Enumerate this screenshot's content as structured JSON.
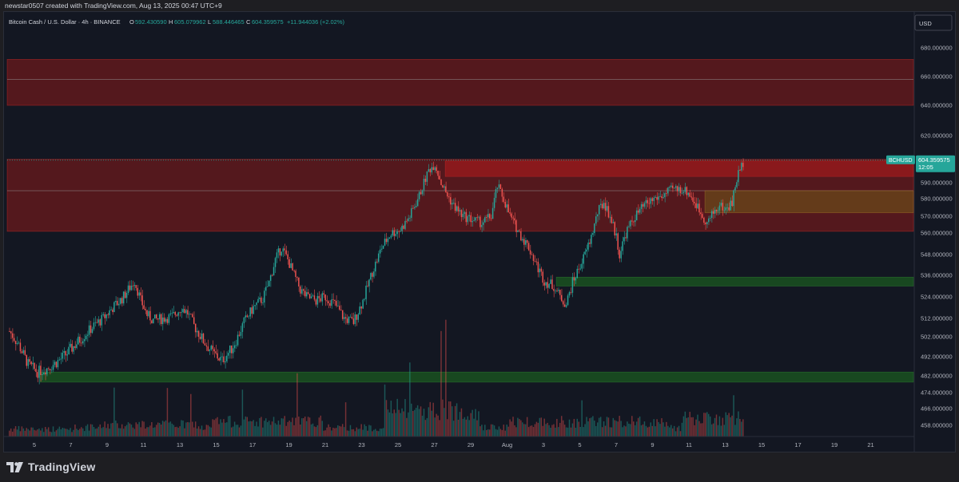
{
  "header": {
    "credit": "newstar0507 created with TradingView.com, Aug 13, 2025 00:47 UTC+9"
  },
  "footer": {
    "brand": "TradingView"
  },
  "colors": {
    "background": "#131722",
    "bull": "#26a69a",
    "bear": "#ef5350",
    "resistance_zone": "#8b1a1a",
    "support_zone": "#1b5e20",
    "orange_zone": "#6b4a1a",
    "price_tag": "#26a69a"
  },
  "chart_data": {
    "type": "candlestick",
    "legend": {
      "symbol": "Bitcoin Cash / U.S. Dollar · 4h · BINANCE",
      "o_label": "O",
      "o_value": "592.430590",
      "h_label": "H",
      "h_value": "605.079962",
      "l_label": "L",
      "l_value": "588.446465",
      "c_label": "C",
      "c_value": "604.359575",
      "change": "+11.944036 (+2.02%)"
    },
    "currency": "USD",
    "y_ticks": [
      "680.000000",
      "660.000000",
      "640.000000",
      "620.000000",
      "590.000000",
      "580.000000",
      "570.000000",
      "560.000000",
      "548.000000",
      "536.000000",
      "524.000000",
      "512.000000",
      "502.000000",
      "492.000000",
      "482.000000",
      "474.000000",
      "466.000000",
      "458.000000"
    ],
    "x_ticks": [
      "5",
      "7",
      "9",
      "11",
      "13",
      "15",
      "17",
      "19",
      "21",
      "23",
      "25",
      "27",
      "29",
      "Aug",
      "3",
      "5",
      "7",
      "9",
      "11",
      "13",
      "15",
      "17",
      "19",
      "21"
    ],
    "price_tag": {
      "symbol": "BCHUSD",
      "value": "604.359575",
      "countdown": "12:05"
    },
    "zones": [
      {
        "kind": "resistance",
        "from": 640,
        "to": 672,
        "midline": 658
      },
      {
        "kind": "resistance",
        "from": 561,
        "to": 605,
        "midline": 585
      },
      {
        "kind": "resistance-highlight",
        "from": 594,
        "to": 604
      },
      {
        "kind": "orange",
        "from": 572,
        "to": 585
      },
      {
        "kind": "support",
        "from": 530,
        "to": 535
      },
      {
        "kind": "support",
        "from": 479,
        "to": 484
      }
    ],
    "trend_path": [
      [
        0,
        505
      ],
      [
        6,
        498
      ],
      [
        12,
        488
      ],
      [
        18,
        484
      ],
      [
        24,
        486
      ],
      [
        30,
        489
      ],
      [
        36,
        493
      ],
      [
        42,
        498
      ],
      [
        48,
        503
      ],
      [
        54,
        508
      ],
      [
        60,
        512
      ],
      [
        66,
        518
      ],
      [
        72,
        523
      ],
      [
        76,
        528
      ],
      [
        80,
        533
      ],
      [
        84,
        522
      ],
      [
        88,
        514
      ],
      [
        92,
        511
      ],
      [
        98,
        512
      ],
      [
        104,
        513
      ],
      [
        110,
        518
      ],
      [
        114,
        515
      ],
      [
        118,
        508
      ],
      [
        124,
        500
      ],
      [
        130,
        494
      ],
      [
        136,
        490
      ],
      [
        142,
        496
      ],
      [
        146,
        502
      ],
      [
        150,
        510
      ],
      [
        156,
        518
      ],
      [
        162,
        523
      ],
      [
        166,
        532
      ],
      [
        170,
        545
      ],
      [
        174,
        552
      ],
      [
        178,
        545
      ],
      [
        182,
        536
      ],
      [
        186,
        528
      ],
      [
        190,
        524
      ],
      [
        196,
        522
      ],
      [
        202,
        524
      ],
      [
        208,
        520
      ],
      [
        214,
        512
      ],
      [
        220,
        510
      ],
      [
        226,
        522
      ],
      [
        232,
        538
      ],
      [
        238,
        552
      ],
      [
        244,
        560
      ],
      [
        250,
        562
      ],
      [
        256,
        570
      ],
      [
        262,
        582
      ],
      [
        268,
        598
      ],
      [
        272,
        602
      ],
      [
        276,
        590
      ],
      [
        280,
        582
      ],
      [
        284,
        576
      ],
      [
        290,
        570
      ],
      [
        296,
        568
      ],
      [
        302,
        566
      ],
      [
        308,
        570
      ],
      [
        312,
        588
      ],
      [
        316,
        580
      ],
      [
        320,
        570
      ],
      [
        326,
        560
      ],
      [
        332,
        552
      ],
      [
        338,
        540
      ],
      [
        342,
        533
      ],
      [
        348,
        530
      ],
      [
        352,
        524
      ],
      [
        356,
        520
      ],
      [
        360,
        532
      ],
      [
        364,
        540
      ],
      [
        368,
        548
      ],
      [
        372,
        558
      ],
      [
        376,
        572
      ],
      [
        380,
        578
      ],
      [
        384,
        570
      ],
      [
        388,
        558
      ],
      [
        390,
        548
      ],
      [
        394,
        560
      ],
      [
        400,
        570
      ],
      [
        406,
        576
      ],
      [
        412,
        580
      ],
      [
        418,
        582
      ],
      [
        424,
        586
      ],
      [
        430,
        586
      ],
      [
        434,
        584
      ],
      [
        438,
        578
      ],
      [
        442,
        572
      ],
      [
        446,
        566
      ],
      [
        450,
        572
      ],
      [
        454,
        576
      ],
      [
        458,
        574
      ],
      [
        462,
        578
      ],
      [
        464,
        588
      ],
      [
        466,
        596
      ],
      [
        469,
        603
      ]
    ],
    "total_candles": 470,
    "volume": [
      {
        "range": [
          0,
          40
        ],
        "level": 0.05
      },
      {
        "range": [
          60,
          120
        ],
        "level": 0.08
      },
      {
        "range": [
          130,
          200
        ],
        "level": 0.1
      },
      {
        "range": [
          240,
          300
        ],
        "level": 0.18
      },
      {
        "range": [
          320,
          420
        ],
        "level": 0.1
      },
      {
        "range": [
          430,
          470
        ],
        "level": 0.12
      }
    ]
  }
}
